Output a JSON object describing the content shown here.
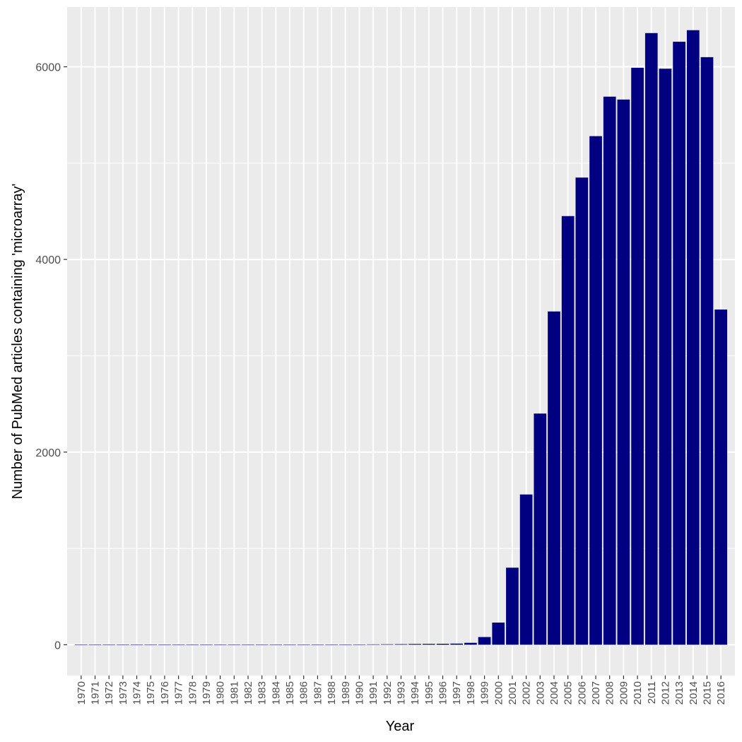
{
  "chart_data": {
    "type": "bar",
    "xlabel": "Year",
    "ylabel": "Number of PubMed articles containing 'microarray'",
    "ylim": [
      -320,
      6620
    ],
    "y_ticks": [
      0,
      2000,
      4000,
      6000
    ],
    "y_tick_labels": [
      "0",
      "2000",
      "4000",
      "6000"
    ],
    "categories": [
      "1970",
      "1971",
      "1972",
      "1973",
      "1974",
      "1975",
      "1976",
      "1977",
      "1978",
      "1979",
      "1980",
      "1981",
      "1982",
      "1983",
      "1984",
      "1985",
      "1986",
      "1987",
      "1988",
      "1989",
      "1990",
      "1991",
      "1992",
      "1993",
      "1994",
      "1995",
      "1996",
      "1997",
      "1998",
      "1999",
      "2000",
      "2001",
      "2002",
      "2003",
      "2004",
      "2005",
      "2006",
      "2007",
      "2008",
      "2009",
      "2010",
      "2011",
      "2012",
      "2013",
      "2014",
      "2015",
      "2016"
    ],
    "values": [
      0,
      0,
      0,
      0,
      0,
      0,
      0,
      0,
      0,
      0,
      0,
      0,
      0,
      0,
      0,
      0,
      0,
      0,
      0,
      2,
      3,
      4,
      5,
      6,
      8,
      9,
      10,
      12,
      20,
      80,
      230,
      800,
      1560,
      2400,
      3460,
      4450,
      4850,
      5280,
      5690,
      5660,
      5990,
      6350,
      5980,
      6260,
      6380,
      6100,
      3480
    ],
    "bar_color": "#000080",
    "panel_background": "#ebebeb",
    "grid": true,
    "legend": "none"
  }
}
